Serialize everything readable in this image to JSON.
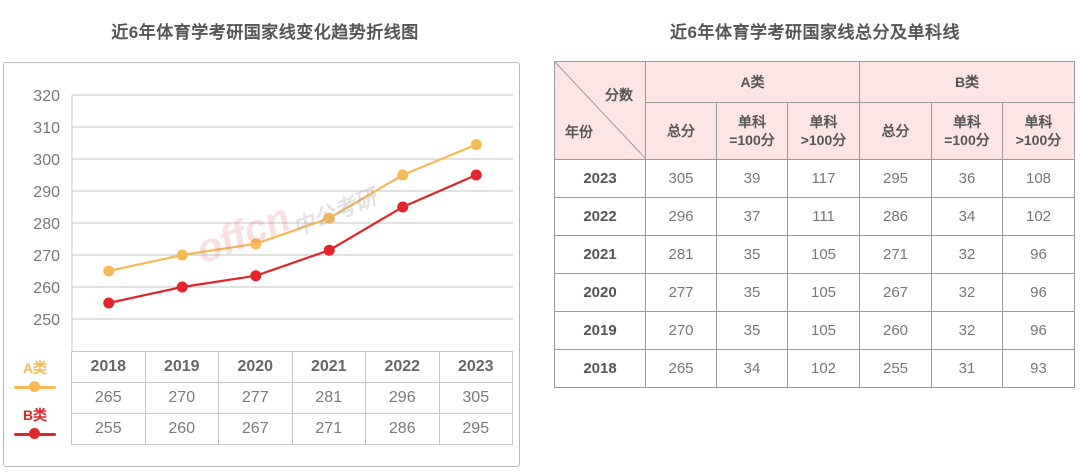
{
  "left_panel": {
    "title": "近6年体育学考研国家线变化趋势折线图",
    "legend": [
      {
        "label": "A类",
        "color": "#f7b955"
      },
      {
        "label": "B类",
        "color": "#e2252a"
      }
    ],
    "data_table": {
      "years": [
        "2018",
        "2019",
        "2020",
        "2021",
        "2022",
        "2023"
      ],
      "rows": [
        {
          "series": "A类",
          "values": [
            "265",
            "270",
            "277",
            "281",
            "296",
            "305"
          ]
        },
        {
          "series": "B类",
          "values": [
            "255",
            "260",
            "267",
            "271",
            "286",
            "295"
          ]
        }
      ]
    }
  },
  "right_panel": {
    "title": "近6年体育学考研国家线总分及单科线",
    "corner_top": "分数",
    "corner_bottom": "年份",
    "groups": [
      "A类",
      "B类"
    ],
    "subheaders": [
      "总分",
      "单科\n=100分",
      "单科\n>100分",
      "总分",
      "单科\n=100分",
      "单科\n>100分"
    ],
    "rows": [
      {
        "year": "2023",
        "cells": [
          "305",
          "39",
          "117",
          "295",
          "36",
          "108"
        ]
      },
      {
        "year": "2022",
        "cells": [
          "296",
          "37",
          "111",
          "286",
          "34",
          "102"
        ]
      },
      {
        "year": "2021",
        "cells": [
          "281",
          "35",
          "105",
          "271",
          "32",
          "96"
        ]
      },
      {
        "year": "2020",
        "cells": [
          "277",
          "35",
          "105",
          "267",
          "32",
          "96"
        ]
      },
      {
        "year": "2019",
        "cells": [
          "270",
          "35",
          "105",
          "260",
          "32",
          "96"
        ]
      },
      {
        "year": "2018",
        "cells": [
          "265",
          "34",
          "102",
          "255",
          "31",
          "93"
        ]
      }
    ]
  },
  "watermark": {
    "brand": "offcn",
    "text": "中公考研"
  },
  "chart_data": [
    {
      "type": "line",
      "title": "近6年体育学考研国家线变化趋势折线图",
      "categories": [
        "2018",
        "2019",
        "2020",
        "2021",
        "2022",
        "2023"
      ],
      "series": [
        {
          "name": "A类",
          "color": "#f7b955",
          "values": [
            265,
            270,
            277,
            281,
            296,
            305
          ]
        },
        {
          "name": "B类",
          "color": "#e2252a",
          "values": [
            255,
            260,
            267,
            271,
            286,
            295
          ]
        }
      ],
      "plotted_points_note": "Plotted marker for 2020 A sits near 273.5 and B near 263.5; data table shows 277/267",
      "xlabel": "",
      "ylabel": "",
      "ylim": [
        250,
        320
      ],
      "yticks": [
        250,
        260,
        270,
        280,
        290,
        300,
        310,
        320
      ],
      "grid": true,
      "legend_position": "left, beside data table"
    },
    {
      "type": "table",
      "title": "近6年体育学考研国家线总分及单科线",
      "columns": [
        "年份",
        "A类 总分",
        "A类 单科=100分",
        "A类 单科>100分",
        "B类 总分",
        "B类 单科=100分",
        "B类 单科>100分"
      ],
      "rows": [
        [
          "2023",
          305,
          39,
          117,
          295,
          36,
          108
        ],
        [
          "2022",
          296,
          37,
          111,
          286,
          34,
          102
        ],
        [
          "2021",
          281,
          35,
          105,
          271,
          32,
          96
        ],
        [
          "2020",
          277,
          35,
          105,
          267,
          32,
          96
        ],
        [
          "2019",
          270,
          35,
          105,
          260,
          32,
          96
        ],
        [
          "2018",
          265,
          34,
          102,
          255,
          31,
          93
        ]
      ]
    }
  ]
}
